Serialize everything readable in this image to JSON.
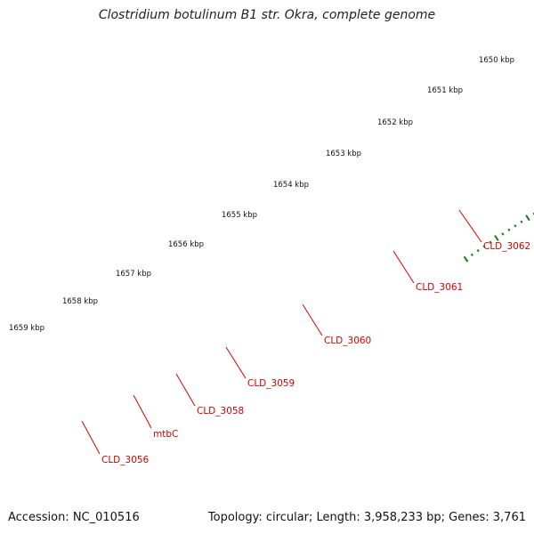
{
  "title": "Clostridium botulinum B1 str. Okra, complete genome",
  "footer": {
    "accession": "Accession: NC_010516",
    "summary": "Topology: circular; Length: 3,958,233 bp; Genes: 3,761"
  },
  "colors": {
    "backbone": "#808080",
    "tick": "#1a7a1a",
    "gene_red": "#ff0000",
    "gene_blue": "#0000e0",
    "gene_gray": "#b8b8b8",
    "gene_cyan": "#00e8f0",
    "label": "#d40000"
  },
  "kbp_ticks": [
    "1650 kbp",
    "1651 kbp",
    "1652 kbp",
    "1653 kbp",
    "1654 kbp",
    "1655 kbp",
    "1656 kbp",
    "1657 kbp",
    "1658 kbp",
    "1659 kbp"
  ],
  "gene_labels": [
    "CLD_3062",
    "CLD_3061",
    "CLD_3060",
    "CLD_3059",
    "CLD_3058",
    "mtbC",
    "CLD_3056"
  ]
}
